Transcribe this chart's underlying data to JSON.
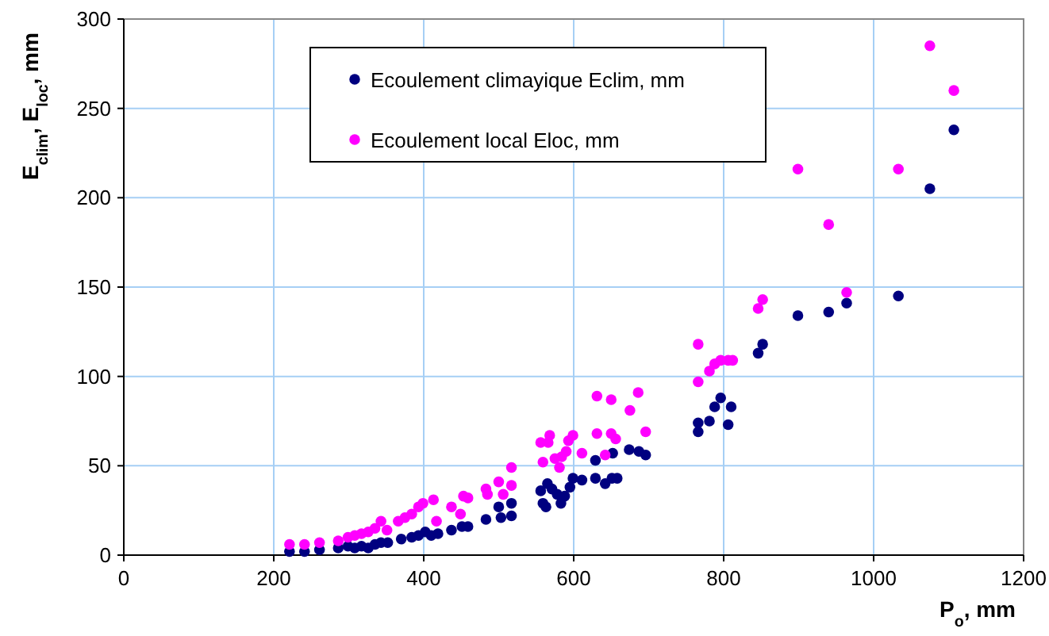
{
  "chart_data": {
    "type": "scatter",
    "xlabel": "P$_{o}$, mm",
    "ylabel": "E$_{clim}$, E$_{loc}$, mm",
    "xlim": [
      0,
      1200
    ],
    "xticks": [
      0,
      200,
      400,
      600,
      800,
      1000,
      1200
    ],
    "ylim": [
      0,
      300
    ],
    "yticks": [
      0,
      50,
      100,
      150,
      200,
      250,
      300
    ],
    "grid": true,
    "legend": "top",
    "marker": "circle",
    "series": [
      {
        "name": "Ecoulement climayique Eclim, mm",
        "color": "#000080",
        "x": [
          221,
          241,
          261,
          286,
          299,
          308,
          317,
          326,
          335,
          343,
          352,
          370,
          384,
          393,
          402,
          410,
          419,
          437,
          451,
          459,
          483,
          500,
          503,
          517,
          517,
          556,
          559,
          563,
          565,
          571,
          578,
          583,
          588,
          595,
          599,
          611,
          629,
          629,
          642,
          652,
          651,
          658,
          674,
          687,
          696,
          766,
          766,
          781,
          788,
          796,
          806,
          810,
          846,
          852,
          899,
          940,
          964,
          1033,
          1075,
          1107
        ],
        "values": [
          2,
          2,
          3,
          4,
          5,
          4,
          5,
          4,
          6,
          7,
          7,
          9,
          10,
          11,
          13,
          11,
          12,
          14,
          16,
          16,
          20,
          27,
          21,
          29,
          22,
          36,
          29,
          27,
          40,
          37,
          34,
          29,
          33,
          38,
          43,
          42,
          53,
          43,
          40,
          57,
          43,
          43,
          59,
          58,
          56,
          69,
          74,
          75,
          83,
          88,
          73,
          83,
          113,
          118,
          134,
          136,
          141,
          145,
          205,
          238
        ]
      },
      {
        "name": "Ecoulement local Eloc, mm",
        "color": "#ff00ff",
        "x": [
          221,
          241,
          261,
          286,
          299,
          308,
          317,
          326,
          335,
          343,
          351,
          366,
          375,
          384,
          393,
          399,
          413,
          417,
          437,
          449,
          453,
          459,
          483,
          485,
          500,
          506,
          517,
          517,
          556,
          559,
          566,
          568,
          575,
          581,
          584,
          590,
          593,
          599,
          611,
          631,
          631,
          642,
          650,
          650,
          656,
          675,
          686,
          696,
          766,
          766,
          781,
          788,
          796,
          806,
          812,
          846,
          852,
          899,
          940,
          964,
          1033,
          1075,
          1107
        ],
        "values": [
          6,
          6,
          7,
          8,
          10,
          11,
          12,
          13,
          15,
          19,
          14,
          19,
          21,
          23,
          27,
          29,
          31,
          19,
          27,
          23,
          33,
          32,
          37,
          34,
          41,
          34,
          49,
          39,
          63,
          52,
          63,
          67,
          54,
          49,
          55,
          58,
          64,
          67,
          57,
          89,
          68,
          56,
          87,
          68,
          65,
          81,
          91,
          69,
          97,
          118,
          103,
          107,
          109,
          109,
          109,
          138,
          143,
          216,
          185,
          147,
          216,
          285,
          260
        ]
      }
    ]
  }
}
